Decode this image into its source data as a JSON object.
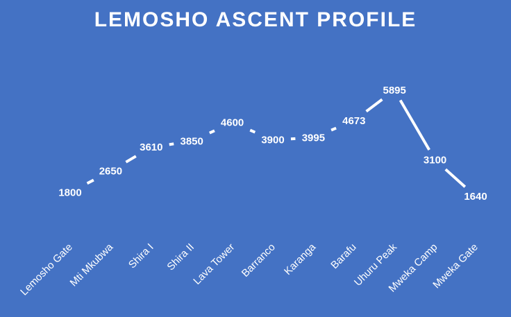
{
  "chart_data": {
    "type": "line",
    "title": "LEMOSHO ASCENT PROFILE",
    "xlabel": "",
    "ylabel": "",
    "categories": [
      "Lemosho Gate",
      "Mti Mkubwa",
      "Shira I",
      "Shira II",
      "Lava Tower",
      "Barranco",
      "Karanga",
      "Barafu",
      "Uhuru Peak",
      "Mweka Camp",
      "Mweka Gate"
    ],
    "series": [
      {
        "values": [
          1800,
          2650,
          3610,
          3850,
          4600,
          3900,
          3995,
          4673,
          5895,
          3100,
          1640
        ]
      }
    ],
    "ylim": [
      0,
      6500
    ],
    "grid": false,
    "legend": "none",
    "data_labels": true,
    "drop_lines": true,
    "colors": {
      "background": "#4472c4",
      "line": "#ffffff",
      "text": "#ffffff"
    }
  }
}
